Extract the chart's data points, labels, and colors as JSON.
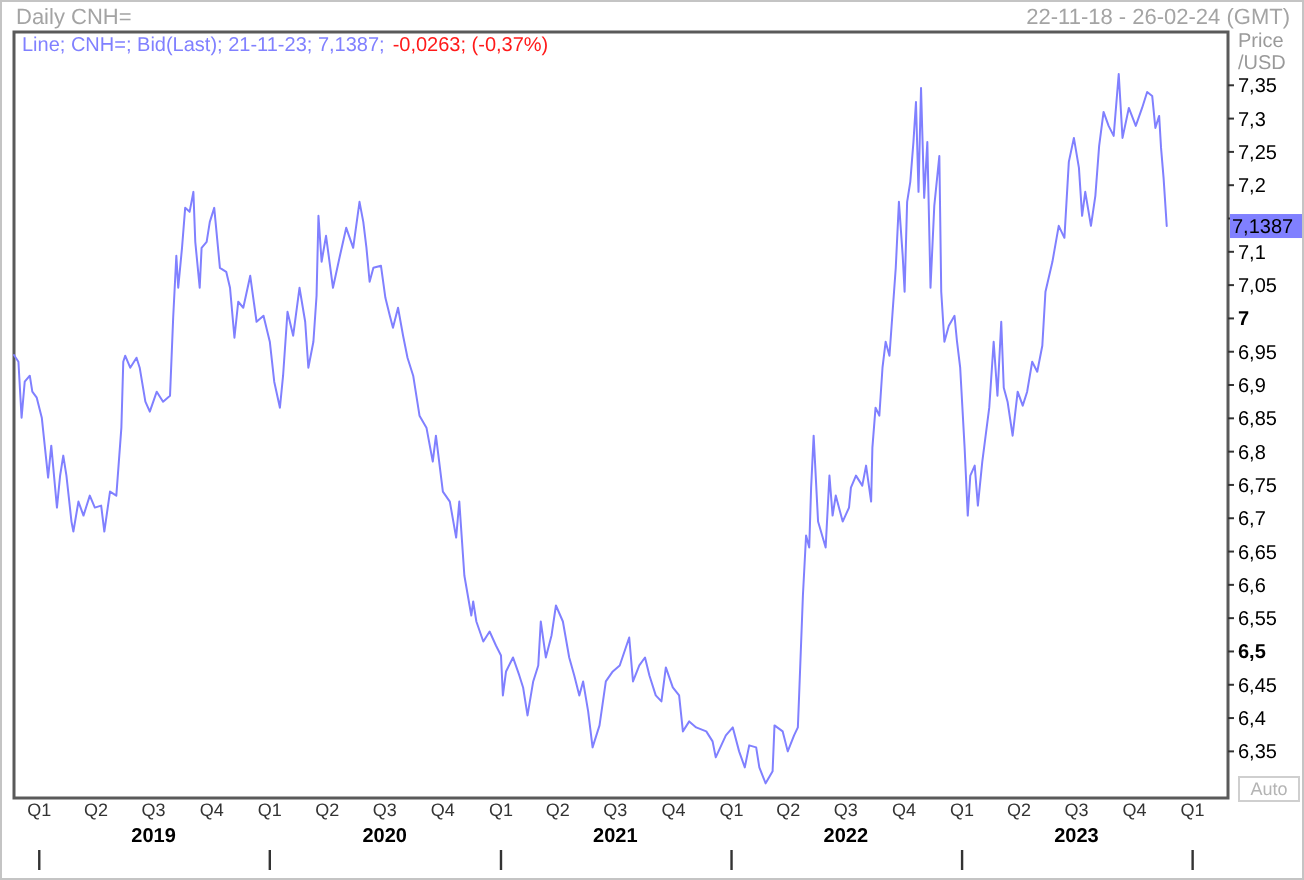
{
  "chart_data": {
    "type": "line",
    "title": "Daily CNH=",
    "subtitle": "22-11-18 - 26-02-24 (GMT)",
    "ylabel": "Price /USD",
    "x": [
      "2018-11-22",
      "2018-11-29",
      "2018-12-04",
      "2018-12-09",
      "2018-12-17",
      "2018-12-21",
      "2018-12-28",
      "2019-01-05",
      "2019-01-10",
      "2019-01-15",
      "2019-01-20",
      "2019-01-29",
      "2019-02-03",
      "2019-02-08",
      "2019-02-13",
      "2019-02-21",
      "2019-02-24",
      "2019-03-04",
      "2019-03-12",
      "2019-03-22",
      "2019-03-30",
      "2019-04-09",
      "2019-04-14",
      "2019-04-23",
      "2019-05-03",
      "2019-05-07",
      "2019-05-11",
      "2019-05-14",
      "2019-05-17",
      "2019-05-25",
      "2019-06-04",
      "2019-06-09",
      "2019-06-18",
      "2019-06-25",
      "2019-07-06",
      "2019-07-16",
      "2019-07-27",
      "2019-08-01",
      "2019-08-06",
      "2019-08-09",
      "2019-08-15",
      "2019-08-20",
      "2019-08-27",
      "2019-09-02",
      "2019-09-05",
      "2019-09-12",
      "2019-09-15",
      "2019-09-23",
      "2019-09-28",
      "2019-10-05",
      "2019-10-14",
      "2019-10-24",
      "2019-10-30",
      "2019-11-06",
      "2019-11-12",
      "2019-11-20",
      "2019-12-01",
      "2019-12-11",
      "2019-12-22",
      "2020-01-01",
      "2020-01-08",
      "2020-01-17",
      "2020-01-22",
      "2020-01-29",
      "2020-02-07",
      "2020-02-17",
      "2020-02-26",
      "2020-03-02",
      "2020-03-10",
      "2020-03-15",
      "2020-03-18",
      "2020-03-23",
      "2020-03-30",
      "2020-04-10",
      "2020-04-21",
      "2020-05-01",
      "2020-05-12",
      "2020-05-22",
      "2020-05-28",
      "2020-06-02",
      "2020-06-07",
      "2020-06-13",
      "2020-06-25",
      "2020-07-02",
      "2020-07-09",
      "2020-07-14",
      "2020-07-22",
      "2020-07-30",
      "2020-08-06",
      "2020-08-15",
      "2020-08-25",
      "2020-09-05",
      "2020-09-15",
      "2020-09-20",
      "2020-10-01",
      "2020-10-12",
      "2020-10-22",
      "2020-10-27",
      "2020-11-04",
      "2020-11-15",
      "2020-11-18",
      "2020-11-23",
      "2020-12-04",
      "2020-12-14",
      "2020-12-24",
      "2021-01-01",
      "2021-01-04",
      "2021-01-09",
      "2021-01-20",
      "2021-01-30",
      "2021-02-05",
      "2021-02-12",
      "2021-02-21",
      "2021-03-01",
      "2021-03-05",
      "2021-03-13",
      "2021-03-22",
      "2021-03-29",
      "2021-04-09",
      "2021-04-19",
      "2021-04-27",
      "2021-05-05",
      "2021-05-11",
      "2021-05-19",
      "2021-05-26",
      "2021-06-06",
      "2021-06-16",
      "2021-06-27",
      "2021-07-08",
      "2021-07-23",
      "2021-07-29",
      "2021-08-08",
      "2021-08-17",
      "2021-08-24",
      "2021-09-03",
      "2021-09-12",
      "2021-09-19",
      "2021-09-30",
      "2021-10-10",
      "2021-10-16",
      "2021-10-26",
      "2021-11-06",
      "2021-11-22",
      "2021-12-02",
      "2021-12-07",
      "2021-12-23",
      "2022-01-03",
      "2022-01-13",
      "2022-01-22",
      "2022-01-29",
      "2022-02-09",
      "2022-02-14",
      "2022-02-24",
      "2022-03-07",
      "2022-03-10",
      "2022-03-23",
      "2022-03-31",
      "2022-04-10",
      "2022-04-16",
      "2022-04-18",
      "2022-04-24",
      "2022-04-29",
      "2022-05-04",
      "2022-05-07",
      "2022-05-11",
      "2022-05-18",
      "2022-05-30",
      "2022-06-05",
      "2022-06-10",
      "2022-06-15",
      "2022-06-26",
      "2022-07-06",
      "2022-07-09",
      "2022-07-17",
      "2022-07-27",
      "2022-08-02",
      "2022-08-10",
      "2022-08-12",
      "2022-08-17",
      "2022-08-23",
      "2022-08-28",
      "2022-09-02",
      "2022-09-08",
      "2022-09-13",
      "2022-09-18",
      "2022-09-23",
      "2022-09-29",
      "2022-10-02",
      "2022-10-06",
      "2022-10-11",
      "2022-10-16",
      "2022-10-20",
      "2022-10-24",
      "2022-10-28",
      "2022-11-02",
      "2022-11-07",
      "2022-11-12",
      "2022-11-18",
      "2022-11-26",
      "2022-11-29",
      "2022-12-04",
      "2022-12-11",
      "2022-12-20",
      "2022-12-24",
      "2022-12-29",
      "2023-01-05",
      "2023-01-10",
      "2023-01-14",
      "2023-01-21",
      "2023-01-26",
      "2023-02-02",
      "2023-02-13",
      "2023-02-20",
      "2023-02-26",
      "2023-03-04",
      "2023-03-08",
      "2023-03-14",
      "2023-03-22",
      "2023-03-30",
      "2023-04-07",
      "2023-04-14",
      "2023-04-22",
      "2023-04-30",
      "2023-05-08",
      "2023-05-13",
      "2023-05-24",
      "2023-06-03",
      "2023-06-12",
      "2023-06-19",
      "2023-06-27",
      "2023-07-05",
      "2023-07-10",
      "2023-07-15",
      "2023-07-24",
      "2023-07-31",
      "2023-08-06",
      "2023-08-13",
      "2023-08-21",
      "2023-08-29",
      "2023-09-06",
      "2023-09-12",
      "2023-09-22",
      "2023-10-03",
      "2023-10-13",
      "2023-10-21",
      "2023-10-29",
      "2023-11-03",
      "2023-11-09",
      "2023-11-12",
      "2023-11-16",
      "2023-11-21"
    ],
    "series": [
      {
        "name": "Line; CNH=; Bid(Last); 21-11-23; 7,1387;",
        "color": "#8080ff",
        "values": [
          6.945,
          6.935,
          6.851,
          6.905,
          6.914,
          6.89,
          6.881,
          6.851,
          6.806,
          6.761,
          6.809,
          6.716,
          6.764,
          6.794,
          6.764,
          6.695,
          6.68,
          6.725,
          6.704,
          6.734,
          6.716,
          6.719,
          6.68,
          6.74,
          6.734,
          6.785,
          6.836,
          6.935,
          6.944,
          6.926,
          6.941,
          6.926,
          6.875,
          6.86,
          6.89,
          6.875,
          6.884,
          7.001,
          7.094,
          7.046,
          7.106,
          7.166,
          7.16,
          7.19,
          7.115,
          7.046,
          7.106,
          7.115,
          7.145,
          7.166,
          7.076,
          7.07,
          7.046,
          6.971,
          7.025,
          7.016,
          7.064,
          6.995,
          7.004,
          6.965,
          6.905,
          6.866,
          6.914,
          7.01,
          6.974,
          7.046,
          6.995,
          6.926,
          6.965,
          7.034,
          7.154,
          7.085,
          7.124,
          7.046,
          7.094,
          7.136,
          7.106,
          7.175,
          7.145,
          7.106,
          7.055,
          7.076,
          7.079,
          7.031,
          7.004,
          6.986,
          7.016,
          6.974,
          6.941,
          6.914,
          6.854,
          6.836,
          6.785,
          6.824,
          6.74,
          6.725,
          6.671,
          6.725,
          6.614,
          6.554,
          6.575,
          6.545,
          6.515,
          6.53,
          6.509,
          6.494,
          6.434,
          6.47,
          6.491,
          6.464,
          6.446,
          6.404,
          6.455,
          6.479,
          6.545,
          6.491,
          6.524,
          6.569,
          6.545,
          6.491,
          6.464,
          6.434,
          6.455,
          6.41,
          6.356,
          6.389,
          6.455,
          6.47,
          6.479,
          6.521,
          6.455,
          6.479,
          6.491,
          6.464,
          6.434,
          6.425,
          6.476,
          6.446,
          6.434,
          6.38,
          6.395,
          6.386,
          6.38,
          6.365,
          6.341,
          6.374,
          6.386,
          6.35,
          6.326,
          6.359,
          6.356,
          6.326,
          6.302,
          6.32,
          6.389,
          6.38,
          6.35,
          6.374,
          6.386,
          6.434,
          6.584,
          6.674,
          6.656,
          6.746,
          6.824,
          6.695,
          6.656,
          6.764,
          6.704,
          6.734,
          6.695,
          6.716,
          6.746,
          6.764,
          6.749,
          6.779,
          6.725,
          6.806,
          6.866,
          6.854,
          6.926,
          6.965,
          6.944,
          7.01,
          7.076,
          7.175,
          7.094,
          7.04,
          7.175,
          7.205,
          7.265,
          7.325,
          7.19,
          7.346,
          7.181,
          7.265,
          7.046,
          7.169,
          7.244,
          7.04,
          6.965,
          6.989,
          7.004,
          6.965,
          6.926,
          6.806,
          6.704,
          6.764,
          6.779,
          6.719,
          6.785,
          6.866,
          6.965,
          6.884,
          6.995,
          6.896,
          6.875,
          6.824,
          6.89,
          6.869,
          6.89,
          6.935,
          6.92,
          6.959,
          7.04,
          7.085,
          7.139,
          7.121,
          7.235,
          7.271,
          7.226,
          7.154,
          7.19,
          7.139,
          7.184,
          7.259,
          7.31,
          7.289,
          7.274,
          7.367,
          7.271,
          7.316,
          7.289,
          7.316,
          7.34,
          7.334,
          7.286,
          7.304,
          7.256,
          7.211,
          7.1387
        ]
      }
    ],
    "xlim": [
      "2018-11-22",
      "2024-02-26"
    ],
    "xticks": [
      {
        "value": "2019-01-01",
        "label": "Q1"
      },
      {
        "value": "2019-04-01",
        "label": "Q2"
      },
      {
        "value": "2019-07-01",
        "label": "Q3\n2019"
      },
      {
        "value": "2019-10-01",
        "label": "Q4"
      },
      {
        "value": "2020-01-01",
        "label": "Q1"
      },
      {
        "value": "2020-04-01",
        "label": "Q2"
      },
      {
        "value": "2020-07-01",
        "label": "Q3\n2020"
      },
      {
        "value": "2020-10-01",
        "label": "Q4"
      },
      {
        "value": "2021-01-01",
        "label": "Q1"
      },
      {
        "value": "2021-04-01",
        "label": "Q2"
      },
      {
        "value": "2021-07-01",
        "label": "Q3\n2021"
      },
      {
        "value": "2021-10-01",
        "label": "Q4"
      },
      {
        "value": "2022-01-01",
        "label": "Q1"
      },
      {
        "value": "2022-04-01",
        "label": "Q2"
      },
      {
        "value": "2022-07-01",
        "label": "Q3\n2022"
      },
      {
        "value": "2022-10-01",
        "label": "Q4"
      },
      {
        "value": "2023-01-01",
        "label": "Q1"
      },
      {
        "value": "2023-04-01",
        "label": "Q2"
      },
      {
        "value": "2023-07-01",
        "label": "Q3\n2023"
      },
      {
        "value": "2023-10-01",
        "label": "Q4"
      },
      {
        "value": "2024-01-01",
        "label": "Q1"
      }
    ],
    "ylim": [
      6.28,
      7.43
    ],
    "yticks": [
      {
        "value": 6.35,
        "label": "6,35"
      },
      {
        "value": 6.4,
        "label": "6,4"
      },
      {
        "value": 6.45,
        "label": "6,45"
      },
      {
        "value": 6.5,
        "label": "6,5"
      },
      {
        "value": 6.55,
        "label": "6,55"
      },
      {
        "value": 6.6,
        "label": "6,6"
      },
      {
        "value": 6.65,
        "label": "6,65"
      },
      {
        "value": 6.7,
        "label": "6,7"
      },
      {
        "value": 6.75,
        "label": "6,75"
      },
      {
        "value": 6.8,
        "label": "6,8"
      },
      {
        "value": 6.85,
        "label": "6,85"
      },
      {
        "value": 6.9,
        "label": "6,9"
      },
      {
        "value": 6.95,
        "label": "6,95"
      },
      7,
      {
        "value": 7.05,
        "label": "7,05"
      },
      {
        "value": 7.1,
        "label": "7,1"
      },
      {
        "value": 7.15,
        "label": null
      },
      {
        "value": 7.2,
        "label": "7,2"
      },
      {
        "value": 7.25,
        "label": "7,25"
      },
      {
        "value": 7.3,
        "label": "7,3"
      },
      {
        "value": 7.35,
        "label": "7,35"
      }
    ],
    "legend": "top left",
    "annotations": [
      {
        "text": "7,1387",
        "y": 7.1387
      },
      "-0,0263; (-0,37%)",
      "Auto"
    ]
  }
}
